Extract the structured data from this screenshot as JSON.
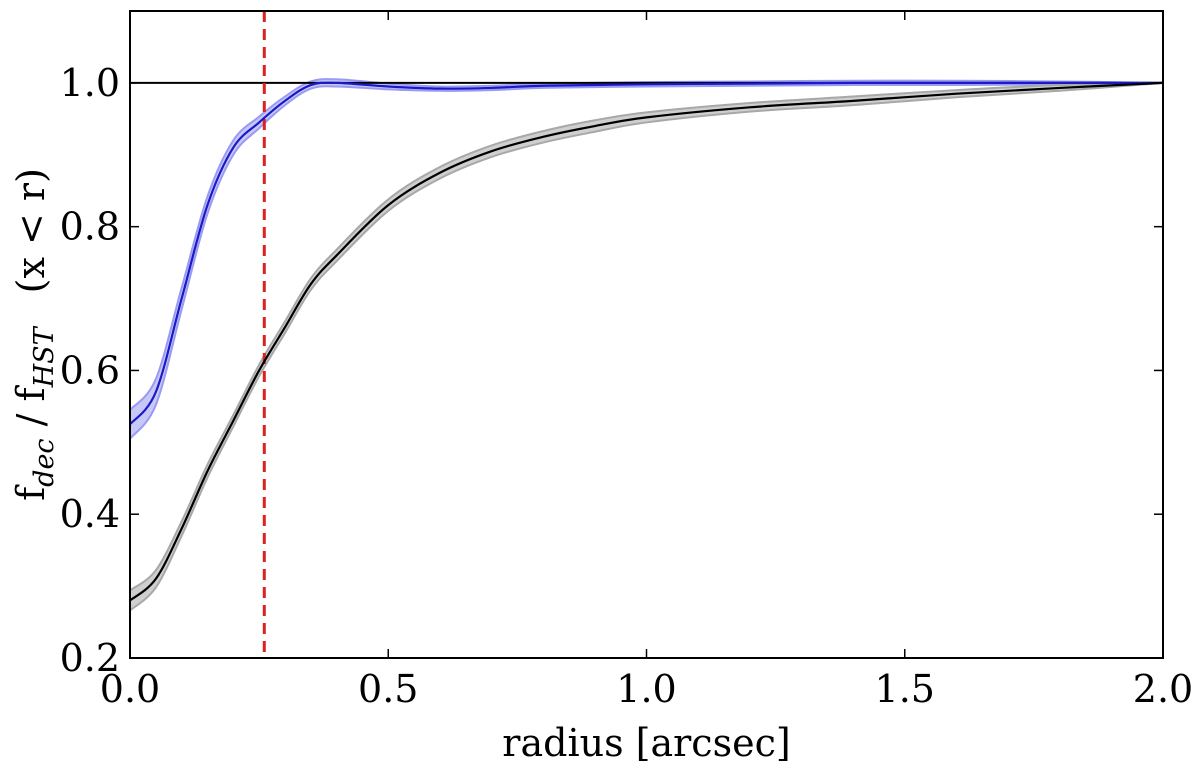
{
  "chart_data": {
    "type": "line",
    "xlabel": "radius [arcsec]",
    "ylabel": {
      "main": "f",
      "sub1": "dec",
      "mid": " / f",
      "sub2": "HST",
      "tail": "(x < r)"
    },
    "xlim": [
      0.0,
      2.0
    ],
    "ylim": [
      0.2,
      1.1
    ],
    "xticks": [
      0.0,
      0.5,
      1.0,
      1.5,
      2.0
    ],
    "xtick_labels": [
      "0.0",
      "0.5",
      "1.0",
      "1.5",
      "2.0"
    ],
    "yticks": [
      0.2,
      0.4,
      0.6,
      0.8,
      1.0
    ],
    "ytick_labels": [
      "0.2",
      "0.4",
      "0.6",
      "0.8",
      "1.0"
    ],
    "grid": false,
    "reference_lines": [
      {
        "orientation": "horizontal",
        "value": 1.0,
        "color": "#000000",
        "style": "solid"
      },
      {
        "orientation": "vertical",
        "value": 0.26,
        "color": "#dd2020",
        "style": "dashed"
      }
    ],
    "series": [
      {
        "color": "#1a1acc",
        "band_color": "#9a9af0",
        "x": [
          0.0,
          0.05,
          0.1,
          0.15,
          0.2,
          0.25,
          0.3,
          0.35,
          0.4,
          0.5,
          0.6,
          0.7,
          0.8,
          1.0,
          1.2,
          1.4,
          1.6,
          1.8,
          2.0
        ],
        "y": [
          0.525,
          0.57,
          0.7,
          0.83,
          0.91,
          0.945,
          0.975,
          0.997,
          1.0,
          0.995,
          0.992,
          0.993,
          0.996,
          0.998,
          0.999,
          1.0,
          1.0,
          1.0,
          1.0
        ],
        "band_halfwidth": [
          0.02,
          0.018,
          0.015,
          0.012,
          0.01,
          0.008,
          0.006,
          0.005,
          0.005,
          0.004,
          0.003,
          0.003,
          0.003,
          0.003,
          0.003,
          0.003,
          0.003,
          0.002,
          0.0
        ]
      },
      {
        "color": "#000000",
        "band_color": "#a8a8a8",
        "x": [
          0.0,
          0.05,
          0.1,
          0.15,
          0.2,
          0.25,
          0.3,
          0.35,
          0.4,
          0.5,
          0.6,
          0.7,
          0.8,
          0.9,
          1.0,
          1.2,
          1.4,
          1.6,
          1.8,
          2.0
        ],
        "y": [
          0.28,
          0.31,
          0.38,
          0.46,
          0.53,
          0.6,
          0.66,
          0.72,
          0.76,
          0.83,
          0.875,
          0.905,
          0.925,
          0.94,
          0.952,
          0.966,
          0.975,
          0.985,
          0.993,
          1.0
        ],
        "band_halfwidth": [
          0.014,
          0.012,
          0.01,
          0.009,
          0.008,
          0.008,
          0.008,
          0.008,
          0.008,
          0.008,
          0.008,
          0.008,
          0.008,
          0.008,
          0.007,
          0.006,
          0.006,
          0.005,
          0.004,
          0.0
        ]
      }
    ]
  }
}
